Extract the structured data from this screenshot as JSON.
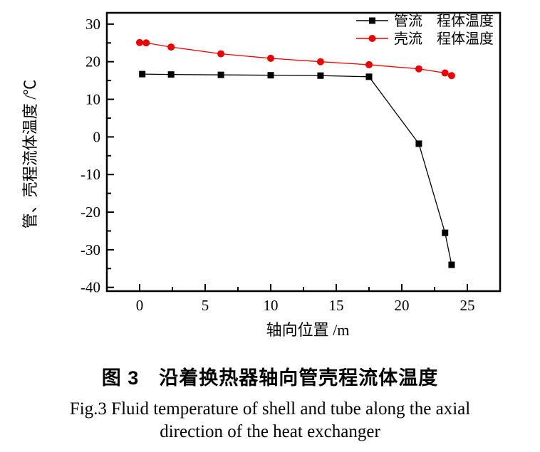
{
  "chart_data": {
    "type": "line",
    "title": "",
    "xlabel": "轴向位置 /m",
    "ylabel": "管、壳程流体温度 /℃",
    "xlim": [
      -2.5,
      27.5
    ],
    "ylim": [
      -41,
      33
    ],
    "x_major_ticks": [
      0,
      5,
      10,
      15,
      20,
      25
    ],
    "x_minor_ticks": [
      2.5,
      7.5,
      12.5,
      17.5,
      22.5
    ],
    "y_major_ticks": [
      30,
      20,
      10,
      0,
      -10,
      -20,
      -30,
      -40
    ],
    "y_minor_ticks": [
      25,
      15,
      5,
      -5,
      -15,
      -25,
      -35
    ],
    "grid": false,
    "legend_position": "top-right-inside",
    "frame_color": "#000000",
    "series": [
      {
        "name": "管流　程体温度",
        "color": "#000000",
        "marker": "square",
        "x": [
          0.2,
          2.4,
          6.2,
          10.0,
          13.8,
          17.5,
          21.3,
          23.3,
          23.8
        ],
        "y": [
          16.7,
          16.6,
          16.5,
          16.4,
          16.3,
          16.0,
          -1.8,
          -25.5,
          -34.0
        ]
      },
      {
        "name": "壳流　程体温度",
        "color": "#ee0000",
        "marker": "circle",
        "x": [
          0.0,
          0.5,
          2.4,
          6.2,
          10.0,
          13.8,
          17.5,
          21.3,
          23.3,
          23.8
        ],
        "y": [
          25.1,
          25.0,
          23.9,
          22.1,
          20.9,
          20.0,
          19.2,
          18.1,
          17.0,
          16.3
        ]
      }
    ]
  },
  "caption": {
    "zh": "图 3　沿着换热器轴向管壳程流体温度",
    "en_line1": "Fig.3  Fluid temperature of shell and tube along the axial",
    "en_line2": "direction of the heat exchanger"
  }
}
